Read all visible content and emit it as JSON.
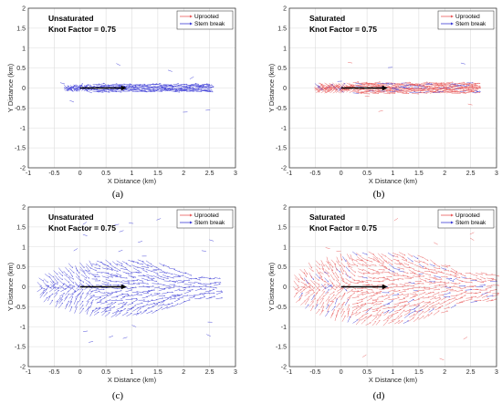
{
  "chart_data": [
    {
      "type": "quiver",
      "panel_label": "(a)",
      "title_lines": [
        "Unsaturated",
        "Knot Factor = 0.75"
      ],
      "xlabel": "X Distance (km)",
      "ylabel": "Y Distance (km)",
      "xlim": [
        -1,
        3
      ],
      "ylim": [
        -2,
        2
      ],
      "xticks": [
        "-1",
        "-0.5",
        "0",
        "0.5",
        "1",
        "1.5",
        "2",
        "2.5",
        "3"
      ],
      "yticks": [
        "-2",
        "-1.5",
        "-1",
        "-0.5",
        "0",
        "0.5",
        "1",
        "1.5",
        "2"
      ],
      "grid": true,
      "legend": {
        "location": "top-right",
        "entries": [
          {
            "name": "Uprooted",
            "color": "#e85a5a"
          },
          {
            "name": "Stem break",
            "color": "#3b3bd6"
          }
        ]
      },
      "track": {
        "x_start": 0,
        "x_end": 0.9,
        "y": 0
      },
      "field": {
        "x_range": [
          -0.3,
          2.5
        ],
        "y_half_width": 0.08,
        "uprooted_fraction": 0.0
      }
    },
    {
      "type": "quiver",
      "panel_label": "(b)",
      "title_lines": [
        "Saturated",
        "Knot Factor = 0.75"
      ],
      "xlabel": "X Distance (km)",
      "ylabel": "Y Distance (km)",
      "xlim": [
        -1,
        3
      ],
      "ylim": [
        -2,
        2
      ],
      "xticks": [
        "-1",
        "-0.5",
        "0",
        "0.5",
        "1",
        "1.5",
        "2",
        "2.5",
        "3"
      ],
      "yticks": [
        "-2",
        "-1.5",
        "-1",
        "-0.5",
        "0",
        "0.5",
        "1",
        "1.5",
        "2"
      ],
      "grid": true,
      "legend": {
        "location": "top-right",
        "entries": [
          {
            "name": "Uprooted",
            "color": "#e85a5a"
          },
          {
            "name": "Stem break",
            "color": "#3b3bd6"
          }
        ]
      },
      "track": {
        "x_start": 0,
        "x_end": 0.9,
        "y": 0
      },
      "field": {
        "x_range": [
          -0.5,
          2.6
        ],
        "y_half_width": 0.12,
        "uprooted_fraction": 0.85
      }
    },
    {
      "type": "quiver",
      "panel_label": "(c)",
      "title_lines": [
        "Unsaturated",
        "Knot Factor = 0.75"
      ],
      "xlabel": "X Distance (km)",
      "ylabel": "Y Distance (km)",
      "xlim": [
        -1,
        3
      ],
      "ylim": [
        -2,
        2
      ],
      "xticks": [
        "-1",
        "-0.5",
        "0",
        "0.5",
        "1",
        "1.5",
        "2",
        "2.5",
        "3"
      ],
      "yticks": [
        "-2",
        "-1.5",
        "-1",
        "-0.5",
        "0",
        "0.5",
        "1",
        "1.5",
        "2"
      ],
      "grid": true,
      "legend": {
        "location": "top-right",
        "entries": [
          {
            "name": "Uprooted",
            "color": "#e85a5a"
          },
          {
            "name": "Stem break",
            "color": "#3b3bd6"
          }
        ]
      },
      "track": {
        "x_start": 0,
        "x_end": 0.9,
        "y": 0
      },
      "field": {
        "x_range": [
          -0.8,
          2.7
        ],
        "y_half_width": 0.75,
        "uprooted_fraction": 0.0
      }
    },
    {
      "type": "quiver",
      "panel_label": "(d)",
      "title_lines": [
        "Saturated",
        "Knot Factor = 0.75"
      ],
      "xlabel": "X Distance (km)",
      "ylabel": "Y Distance (km)",
      "xlim": [
        -1,
        3
      ],
      "ylim": [
        -2,
        2
      ],
      "xticks": [
        "-1",
        "-0.5",
        "0",
        "0.5",
        "1",
        "1.5",
        "2",
        "2.5",
        "3"
      ],
      "yticks": [
        "-2",
        "-1.5",
        "-1",
        "-0.5",
        "0",
        "0.5",
        "1",
        "1.5",
        "2"
      ],
      "grid": true,
      "legend": {
        "location": "top-right",
        "entries": [
          {
            "name": "Uprooted",
            "color": "#e85a5a"
          },
          {
            "name": "Stem break",
            "color": "#3b3bd6"
          }
        ]
      },
      "track": {
        "x_start": 0,
        "x_end": 0.9,
        "y": 0
      },
      "field": {
        "x_range": [
          -0.9,
          2.95
        ],
        "y_half_width": 0.95,
        "uprooted_fraction": 0.85
      }
    }
  ]
}
